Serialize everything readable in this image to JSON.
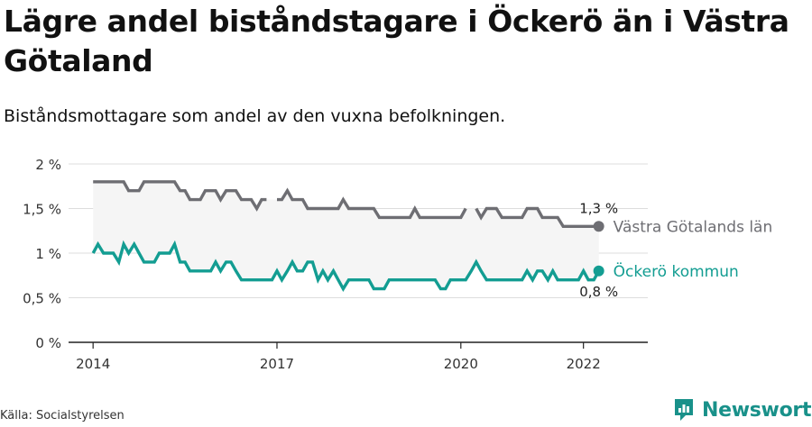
{
  "title": "Lägre andel biståndstagare i Öckerö än i Västra Götaland",
  "subtitle": "Biståndsmottagare som andel av den vuxna befolkningen.",
  "source": "Källa: Socialstyrelsen",
  "brand": {
    "name": "Newsworthy",
    "icon": "newsworthy-logo-icon"
  },
  "colors": {
    "vg": "#6e6e73",
    "ockero": "#139d92",
    "band": "#f5f5f5",
    "grid": "#dddddd"
  },
  "chart_data": {
    "type": "line",
    "ylim": [
      0,
      2
    ],
    "y_ticks": [
      {
        "value": 0,
        "label": "0 %"
      },
      {
        "value": 0.5,
        "label": "0,5 %"
      },
      {
        "value": 1,
        "label": "1 %"
      },
      {
        "value": 1.5,
        "label": "1,5 %"
      },
      {
        "value": 2,
        "label": "2 %"
      }
    ],
    "x_ticks": [
      {
        "value": 2014,
        "label": "2014"
      },
      {
        "value": 2017,
        "label": "2017"
      },
      {
        "value": 2020,
        "label": "2020"
      },
      {
        "value": 2022,
        "label": "2022"
      }
    ],
    "xlim": [
      2013.6,
      2023.05
    ],
    "grid": true,
    "series": [
      {
        "key": "vg",
        "name": "Västra Götalands län",
        "end_label": "1,3 %",
        "color": "#6e6e73",
        "points": [
          [
            2014.0,
            1.8
          ],
          [
            2014.08,
            1.8
          ],
          [
            2014.17,
            1.8
          ],
          [
            2014.25,
            1.8
          ],
          [
            2014.33,
            1.8
          ],
          [
            2014.42,
            1.8
          ],
          [
            2014.5,
            1.8
          ],
          [
            2014.58,
            1.7
          ],
          [
            2014.67,
            1.7
          ],
          [
            2014.75,
            1.7
          ],
          [
            2014.83,
            1.8
          ],
          [
            2014.92,
            1.8
          ],
          [
            2015.0,
            1.8
          ],
          [
            2015.08,
            1.8
          ],
          [
            2015.17,
            1.8
          ],
          [
            2015.25,
            1.8
          ],
          [
            2015.33,
            1.8
          ],
          [
            2015.42,
            1.7
          ],
          [
            2015.5,
            1.7
          ],
          [
            2015.58,
            1.6
          ],
          [
            2015.67,
            1.6
          ],
          [
            2015.75,
            1.6
          ],
          [
            2015.83,
            1.7
          ],
          [
            2015.92,
            1.7
          ],
          [
            2016.0,
            1.7
          ],
          [
            2016.08,
            1.6
          ],
          [
            2016.17,
            1.7
          ],
          [
            2016.25,
            1.7
          ],
          [
            2016.33,
            1.7
          ],
          [
            2016.42,
            1.6
          ],
          [
            2016.5,
            1.6
          ],
          [
            2016.58,
            1.6
          ],
          [
            2016.67,
            1.5
          ],
          [
            2016.75,
            1.6
          ],
          [
            2016.83,
            1.6
          ],
          null,
          [
            2017.0,
            1.6
          ],
          [
            2017.08,
            1.6
          ],
          [
            2017.17,
            1.7
          ],
          [
            2017.25,
            1.6
          ],
          [
            2017.33,
            1.6
          ],
          [
            2017.42,
            1.6
          ],
          [
            2017.5,
            1.5
          ],
          [
            2017.58,
            1.5
          ],
          [
            2017.67,
            1.5
          ],
          [
            2017.75,
            1.5
          ],
          [
            2017.83,
            1.5
          ],
          [
            2017.92,
            1.5
          ],
          [
            2018.0,
            1.5
          ],
          [
            2018.08,
            1.6
          ],
          [
            2018.17,
            1.5
          ],
          [
            2018.25,
            1.5
          ],
          [
            2018.33,
            1.5
          ],
          [
            2018.42,
            1.5
          ],
          [
            2018.5,
            1.5
          ],
          [
            2018.58,
            1.5
          ],
          [
            2018.67,
            1.4
          ],
          [
            2018.75,
            1.4
          ],
          [
            2018.83,
            1.4
          ],
          [
            2018.92,
            1.4
          ],
          [
            2019.0,
            1.4
          ],
          [
            2019.08,
            1.4
          ],
          [
            2019.17,
            1.4
          ],
          [
            2019.25,
            1.5
          ],
          [
            2019.33,
            1.4
          ],
          [
            2019.42,
            1.4
          ],
          [
            2019.5,
            1.4
          ],
          [
            2019.58,
            1.4
          ],
          [
            2019.67,
            1.4
          ],
          [
            2019.75,
            1.4
          ],
          [
            2019.83,
            1.4
          ],
          [
            2019.92,
            1.4
          ],
          [
            2020.0,
            1.4
          ],
          [
            2020.08,
            1.5
          ],
          null,
          [
            2020.25,
            1.5
          ],
          [
            2020.33,
            1.4
          ],
          [
            2020.42,
            1.5
          ],
          [
            2020.5,
            1.5
          ],
          [
            2020.58,
            1.5
          ],
          [
            2020.67,
            1.4
          ],
          [
            2020.75,
            1.4
          ],
          [
            2020.83,
            1.4
          ],
          [
            2020.92,
            1.4
          ],
          [
            2021.0,
            1.4
          ],
          [
            2021.08,
            1.5
          ],
          [
            2021.17,
            1.5
          ],
          [
            2021.25,
            1.5
          ],
          [
            2021.33,
            1.4
          ],
          [
            2021.42,
            1.4
          ],
          [
            2021.5,
            1.4
          ],
          [
            2021.58,
            1.4
          ],
          [
            2021.67,
            1.3
          ],
          [
            2021.75,
            1.3
          ],
          [
            2021.83,
            1.3
          ],
          [
            2021.92,
            1.3
          ],
          [
            2022.0,
            1.3
          ],
          [
            2022.08,
            1.3
          ],
          [
            2022.17,
            1.3
          ],
          [
            2022.25,
            1.3
          ]
        ]
      },
      {
        "key": "ockero",
        "name": "Öckerö kommun",
        "end_label": "0,8 %",
        "color": "#139d92",
        "points": [
          [
            2014.0,
            1.0
          ],
          [
            2014.08,
            1.1
          ],
          [
            2014.17,
            1.0
          ],
          [
            2014.25,
            1.0
          ],
          [
            2014.33,
            1.0
          ],
          [
            2014.42,
            0.9
          ],
          [
            2014.5,
            1.1
          ],
          [
            2014.58,
            1.0
          ],
          [
            2014.67,
            1.1
          ],
          [
            2014.75,
            1.0
          ],
          [
            2014.83,
            0.9
          ],
          [
            2014.92,
            0.9
          ],
          [
            2015.0,
            0.9
          ],
          [
            2015.08,
            1.0
          ],
          [
            2015.17,
            1.0
          ],
          [
            2015.25,
            1.0
          ],
          [
            2015.33,
            1.1
          ],
          [
            2015.42,
            0.9
          ],
          [
            2015.5,
            0.9
          ],
          [
            2015.58,
            0.8
          ],
          [
            2015.67,
            0.8
          ],
          [
            2015.75,
            0.8
          ],
          [
            2015.83,
            0.8
          ],
          [
            2015.92,
            0.8
          ],
          [
            2016.0,
            0.9
          ],
          [
            2016.08,
            0.8
          ],
          [
            2016.17,
            0.9
          ],
          [
            2016.25,
            0.9
          ],
          [
            2016.33,
            0.8
          ],
          [
            2016.42,
            0.7
          ],
          [
            2016.5,
            0.7
          ],
          [
            2016.58,
            0.7
          ],
          [
            2016.67,
            0.7
          ],
          [
            2016.75,
            0.7
          ],
          [
            2016.83,
            0.7
          ],
          [
            2016.92,
            0.7
          ],
          [
            2017.0,
            0.8
          ],
          [
            2017.08,
            0.7
          ],
          [
            2017.17,
            0.8
          ],
          [
            2017.25,
            0.9
          ],
          [
            2017.33,
            0.8
          ],
          [
            2017.42,
            0.8
          ],
          [
            2017.5,
            0.9
          ],
          [
            2017.58,
            0.9
          ],
          [
            2017.67,
            0.7
          ],
          [
            2017.75,
            0.8
          ],
          [
            2017.83,
            0.7
          ],
          [
            2017.92,
            0.8
          ],
          [
            2018.0,
            0.7
          ],
          [
            2018.08,
            0.6
          ],
          [
            2018.17,
            0.7
          ],
          [
            2018.25,
            0.7
          ],
          [
            2018.33,
            0.7
          ],
          [
            2018.42,
            0.7
          ],
          [
            2018.5,
            0.7
          ],
          [
            2018.58,
            0.6
          ],
          [
            2018.67,
            0.6
          ],
          [
            2018.75,
            0.6
          ],
          [
            2018.83,
            0.7
          ],
          [
            2018.92,
            0.7
          ],
          [
            2019.0,
            0.7
          ],
          [
            2019.08,
            0.7
          ],
          [
            2019.17,
            0.7
          ],
          [
            2019.25,
            0.7
          ],
          [
            2019.33,
            0.7
          ],
          [
            2019.42,
            0.7
          ],
          [
            2019.5,
            0.7
          ],
          [
            2019.58,
            0.7
          ],
          [
            2019.67,
            0.6
          ],
          [
            2019.75,
            0.6
          ],
          [
            2019.83,
            0.7
          ],
          [
            2019.92,
            0.7
          ],
          [
            2020.0,
            0.7
          ],
          [
            2020.08,
            0.7
          ],
          [
            2020.17,
            0.8
          ],
          [
            2020.25,
            0.9
          ],
          [
            2020.33,
            0.8
          ],
          [
            2020.42,
            0.7
          ],
          [
            2020.5,
            0.7
          ],
          [
            2020.58,
            0.7
          ],
          [
            2020.67,
            0.7
          ],
          [
            2020.75,
            0.7
          ],
          [
            2020.83,
            0.7
          ],
          [
            2020.92,
            0.7
          ],
          [
            2021.0,
            0.7
          ],
          [
            2021.08,
            0.8
          ],
          [
            2021.17,
            0.7
          ],
          [
            2021.25,
            0.8
          ],
          [
            2021.33,
            0.8
          ],
          [
            2021.42,
            0.7
          ],
          [
            2021.5,
            0.8
          ],
          [
            2021.58,
            0.7
          ],
          [
            2021.67,
            0.7
          ],
          [
            2021.75,
            0.7
          ],
          [
            2021.83,
            0.7
          ],
          [
            2021.92,
            0.7
          ],
          [
            2022.0,
            0.8
          ],
          [
            2022.08,
            0.7
          ],
          [
            2022.17,
            0.7
          ],
          [
            2022.25,
            0.8
          ]
        ]
      }
    ]
  }
}
